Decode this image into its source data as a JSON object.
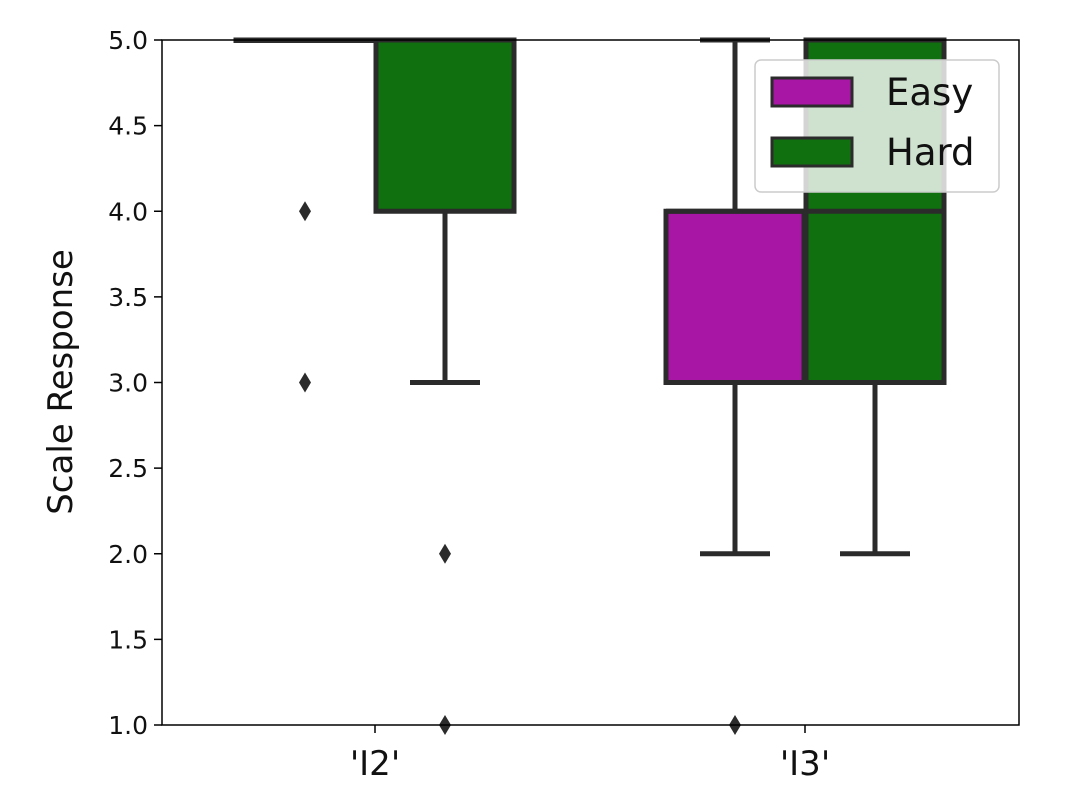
{
  "chart_data": {
    "type": "box",
    "ylabel": "Scale Response",
    "xlabel": "",
    "ylim": [
      1.0,
      5.0
    ],
    "yticks": [
      "1.0",
      "1.5",
      "2.0",
      "2.5",
      "3.0",
      "3.5",
      "4.0",
      "4.5",
      "5.0"
    ],
    "categories": [
      "'I2'",
      "'I3'"
    ],
    "legend": {
      "position": "top-right"
    },
    "series": [
      {
        "name": "Easy",
        "color": "#a716a5",
        "boxes": [
          {
            "category": "'I2'",
            "q1": 5.0,
            "median": 5.0,
            "q3": 5.0,
            "whisker_low": 5.0,
            "whisker_high": 5.0,
            "outliers": [
              4.0,
              3.0
            ]
          },
          {
            "category": "'I3'",
            "q1": 3.0,
            "median": 4.0,
            "q3": 4.0,
            "whisker_low": 2.0,
            "whisker_high": 5.0,
            "outliers": [
              1.0
            ]
          }
        ]
      },
      {
        "name": "Hard",
        "color": "#107010",
        "boxes": [
          {
            "category": "'I2'",
            "q1": 4.0,
            "median": 5.0,
            "q3": 5.0,
            "whisker_low": 3.0,
            "whisker_high": 5.0,
            "outliers": [
              2.0,
              1.0
            ]
          },
          {
            "category": "'I3'",
            "q1": 3.0,
            "median": 4.0,
            "q3": 5.0,
            "whisker_low": 2.0,
            "whisker_high": 5.0,
            "outliers": []
          }
        ]
      }
    ]
  }
}
